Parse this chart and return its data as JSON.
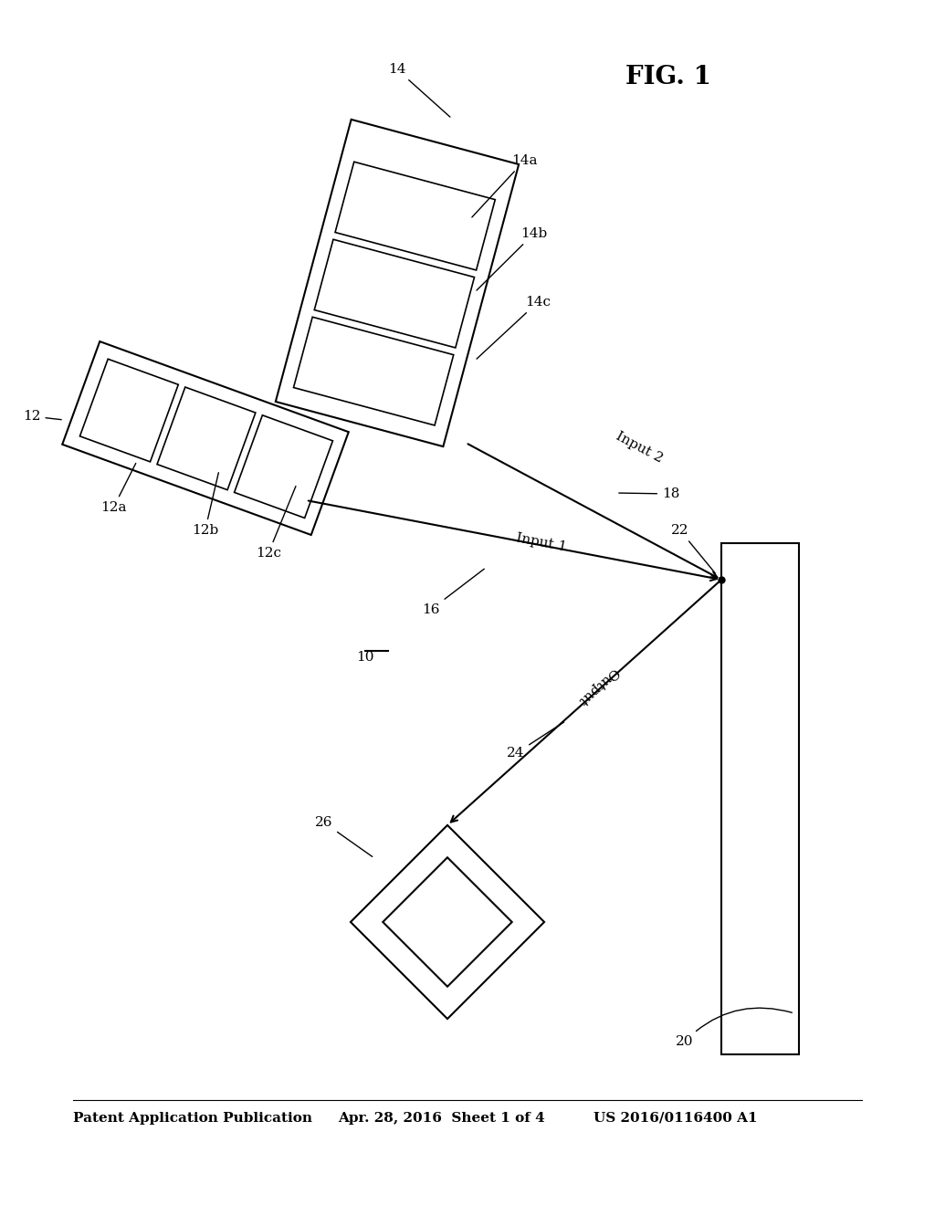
{
  "bg_color": "#ffffff",
  "header_left": "Patent Application Publication",
  "header_mid": "Apr. 28, 2016  Sheet 1 of 4",
  "header_right": "US 2016/0116400 A1",
  "fig_label": "FIG. 1",
  "label_10": "10",
  "label_12": "12",
  "label_12a": "12a",
  "label_12b": "12b",
  "label_12c": "12c",
  "label_14": "14",
  "label_14a": "14a",
  "label_14b": "14b",
  "label_14c": "14c",
  "label_16": "16",
  "label_18": "18",
  "label_20": "20",
  "label_22": "22",
  "label_24": "24",
  "label_26": "26",
  "label_input1": "Input 1",
  "label_input2": "Input 2",
  "label_output": "Output",
  "line_lw": 1.5,
  "font_size": 11,
  "fig_label_size": 20
}
